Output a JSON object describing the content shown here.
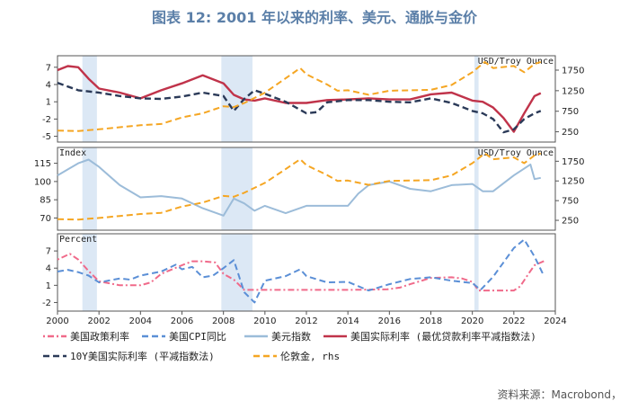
{
  "title": "图表 12: 2001 年以来的利率、美元、通胀与金价",
  "source": "资料来源：Macrobond，",
  "colors": {
    "policy": "#f06a8a",
    "cpi": "#5b8fd6",
    "dollar": "#9cbcd9",
    "real": "#c0334a",
    "real10y": "#2b3a58",
    "gold": "#f5a623",
    "recession": "#dce8f5"
  },
  "chart_data": {
    "type": "line",
    "recessions": [
      [
        2001.2,
        2001.9
      ],
      [
        2007.9,
        2009.4
      ],
      [
        2020.1,
        2020.3
      ]
    ],
    "x_ticks": [
      "2000",
      "2002",
      "2004",
      "2006",
      "2008",
      "2010",
      "2012",
      "2014",
      "2016",
      "2018",
      "2020",
      "2022",
      "2024"
    ],
    "x_range": [
      2000,
      2024
    ],
    "panels": [
      {
        "id": "top",
        "left_label": "",
        "right_label": "USD/Troy Ounce",
        "ylim": [
          -6,
          9
        ],
        "yticks": [
          "7",
          "4",
          "1",
          "-2",
          "-5"
        ],
        "y2lim": [
          0,
          2100
        ],
        "y2ticks": [
          "1750",
          "1250",
          "750",
          "250"
        ],
        "series": [
          {
            "name": "美国实际利率 (最优贷款利率平减指数法)",
            "key": "real",
            "axis": "left",
            "style": "solid",
            "x": [
              2000,
              2000.5,
              2001,
              2001.5,
              2002,
              2003,
              2004,
              2005,
              2006,
              2007,
              2008,
              2008.5,
              2009,
              2009.5,
              2010,
              2011,
              2012,
              2013,
              2014,
              2015,
              2016,
              2017,
              2018,
              2019,
              2020,
              2020.5,
              2021,
              2021.5,
              2022,
              2022.5,
              2023,
              2023.3
            ],
            "y": [
              6.5,
              7.2,
              7.0,
              5.0,
              3.3,
              2.6,
              1.6,
              3.0,
              4.2,
              5.6,
              4.2,
              2.2,
              1.4,
              1.2,
              1.6,
              0.8,
              0.8,
              1.3,
              1.4,
              1.6,
              1.4,
              1.4,
              2.3,
              2.6,
              1.2,
              1.0,
              0.0,
              -1.8,
              -4.2,
              -1.0,
              2.0,
              2.5
            ]
          },
          {
            "name": "10Y美国实际利率 (平减指数法)",
            "key": "real10y",
            "axis": "left",
            "style": "dashed",
            "x": [
              2000,
              2001,
              2002,
              2003,
              2004,
              2005,
              2006,
              2007,
              2008,
              2008.5,
              2009,
              2009.5,
              2010,
              2011,
              2012,
              2012.5,
              2013,
              2014,
              2015,
              2016,
              2017,
              2018,
              2019,
              2020,
              2020.5,
              2021,
              2021.5,
              2022,
              2022.5,
              2023,
              2023.3
            ],
            "y": [
              4.3,
              3.0,
              2.6,
              2.0,
              1.6,
              1.5,
              1.9,
              2.6,
              2.0,
              -0.6,
              1.5,
              3.0,
              2.4,
              1.0,
              -1.0,
              -0.8,
              0.9,
              1.3,
              1.3,
              1.0,
              0.9,
              1.6,
              0.8,
              -0.6,
              -1.0,
              -2.0,
              -4.3,
              -3.8,
              -2.0,
              -1.0,
              -0.6
            ]
          },
          {
            "name": "伦敦金, rhs",
            "key": "gold",
            "axis": "right",
            "style": "dashed",
            "x": [
              2000,
              2001,
              2002,
              2003,
              2004,
              2005,
              2006,
              2007,
              2008,
              2008.5,
              2009,
              2010,
              2011,
              2011.7,
              2012,
              2013,
              2013.5,
              2014,
              2015,
              2016,
              2017,
              2018,
              2019,
              2020,
              2020.6,
              2021,
              2022,
              2022.5,
              2023,
              2023.3
            ],
            "y": [
              280,
              270,
              310,
              360,
              410,
              440,
              600,
              700,
              870,
              850,
              950,
              1200,
              1550,
              1800,
              1650,
              1400,
              1250,
              1260,
              1150,
              1250,
              1260,
              1270,
              1390,
              1700,
              1950,
              1800,
              1850,
              1700,
              1900,
              1950
            ]
          }
        ]
      },
      {
        "id": "middle",
        "left_label": "Index",
        "right_label": "USD/Troy Ounce",
        "ylim": [
          60,
          128
        ],
        "yticks": [
          "115",
          "100",
          "85",
          "70"
        ],
        "y2lim": [
          0,
          2100
        ],
        "y2ticks": [
          "1750",
          "1250",
          "750",
          "250"
        ],
        "series": [
          {
            "name": "美元指数",
            "key": "dollar",
            "axis": "left",
            "style": "solid",
            "x": [
              2000,
              2000.5,
              2001,
              2001.5,
              2002,
              2003,
              2004,
              2005,
              2006,
              2007,
              2008,
              2008.5,
              2009,
              2009.5,
              2010,
              2011,
              2012,
              2013,
              2014,
              2014.5,
              2015,
              2016,
              2017,
              2018,
              2019,
              2020,
              2020.5,
              2021,
              2022,
              2022.8,
              2023,
              2023.3
            ],
            "y": [
              105,
              110,
              115,
              118,
              112,
              97,
              87,
              88,
              86,
              78,
              72,
              86,
              82,
              76,
              80,
              74,
              80,
              80,
              80,
              90,
              97,
              100,
              94,
              92,
              97,
              98,
              92,
              92,
              105,
              114,
              102,
              103
            ]
          },
          {
            "name": "伦敦金, rhs",
            "key": "gold",
            "axis": "right",
            "style": "dashed",
            "x": [
              2000,
              2001,
              2002,
              2003,
              2004,
              2005,
              2006,
              2007,
              2008,
              2008.5,
              2009,
              2010,
              2011,
              2011.7,
              2012,
              2013,
              2013.5,
              2014,
              2015,
              2016,
              2017,
              2018,
              2019,
              2020,
              2020.6,
              2021,
              2022,
              2022.5,
              2023,
              2023.3
            ],
            "y": [
              280,
              270,
              310,
              360,
              410,
              440,
              600,
              700,
              870,
              850,
              950,
              1200,
              1550,
              1800,
              1650,
              1400,
              1250,
              1260,
              1150,
              1250,
              1260,
              1270,
              1390,
              1700,
              1950,
              1800,
              1850,
              1700,
              1900,
              1950
            ]
          }
        ]
      },
      {
        "id": "bottom",
        "left_label": "Percent",
        "right_label": "",
        "ylim": [
          -3.5,
          10
        ],
        "yticks": [
          "7",
          "4",
          "1",
          "-2"
        ],
        "series": [
          {
            "name": "美国政策利率",
            "key": "policy",
            "axis": "left",
            "style": "dashdot",
            "x": [
              2000,
              2000.6,
              2001,
              2001.5,
              2002,
              2003,
              2004,
              2004.5,
              2005,
              2006,
              2006.5,
              2007,
              2007.6,
              2008,
              2008.5,
              2009,
              2010,
              2012,
              2014,
              2015.9,
              2016.5,
              2017,
              2018,
              2019,
              2019.5,
              2020,
              2020.3,
              2021,
              2022,
              2022.3,
              2022.8,
              2023,
              2023.5
            ],
            "y": [
              5.5,
              6.5,
              5.5,
              3.5,
              1.7,
              1.0,
              1.0,
              1.5,
              3.0,
              4.5,
              5.2,
              5.2,
              5.0,
              3.0,
              2.0,
              0.2,
              0.2,
              0.2,
              0.2,
              0.3,
              0.6,
              1.2,
              2.3,
              2.4,
              2.2,
              1.6,
              0.1,
              0.1,
              0.1,
              0.8,
              3.5,
              4.5,
              5.3
            ]
          },
          {
            "name": "美国CPI同比",
            "key": "cpi",
            "axis": "left",
            "style": "dashed",
            "x": [
              2000,
              2000.5,
              2001,
              2001.5,
              2002,
              2003,
              2003.5,
              2004,
              2005,
              2005.7,
              2006,
              2006.5,
              2007,
              2007.5,
              2008,
              2008.5,
              2009,
              2009.5,
              2010,
              2011,
              2011.7,
              2012,
              2013,
              2014,
              2015,
              2016,
              2017,
              2018,
              2019,
              2020,
              2020.4,
              2021,
              2021.5,
              2022,
              2022.5,
              2023,
              2023.4
            ],
            "y": [
              3.4,
              3.7,
              3.3,
              2.7,
              1.5,
              2.2,
              2.0,
              2.7,
              3.4,
              4.6,
              3.8,
              4.2,
              2.4,
              2.7,
              4.0,
              5.4,
              -0.2,
              -2.0,
              1.8,
              2.6,
              3.8,
              2.6,
              1.5,
              1.6,
              0.1,
              1.2,
              2.1,
              2.4,
              1.8,
              1.4,
              0.2,
              2.5,
              5.0,
              7.5,
              9.0,
              6.0,
              3.0
            ]
          }
        ]
      }
    ]
  },
  "legend": [
    {
      "key": "policy",
      "label": "美国政策利率",
      "style": "dashdot"
    },
    {
      "key": "cpi",
      "label": "美国CPI同比",
      "style": "dashed"
    },
    {
      "key": "dollar",
      "label": "美元指数",
      "style": "solid"
    },
    {
      "key": "real",
      "label": "美国实际利率 (最优贷款利率平减指数法)",
      "style": "solid"
    },
    {
      "key": "real10y",
      "label": "10Y美国实际利率 (平减指数法)",
      "style": "dashed"
    },
    {
      "key": "gold",
      "label": "伦敦金, rhs",
      "style": "dashed"
    }
  ]
}
